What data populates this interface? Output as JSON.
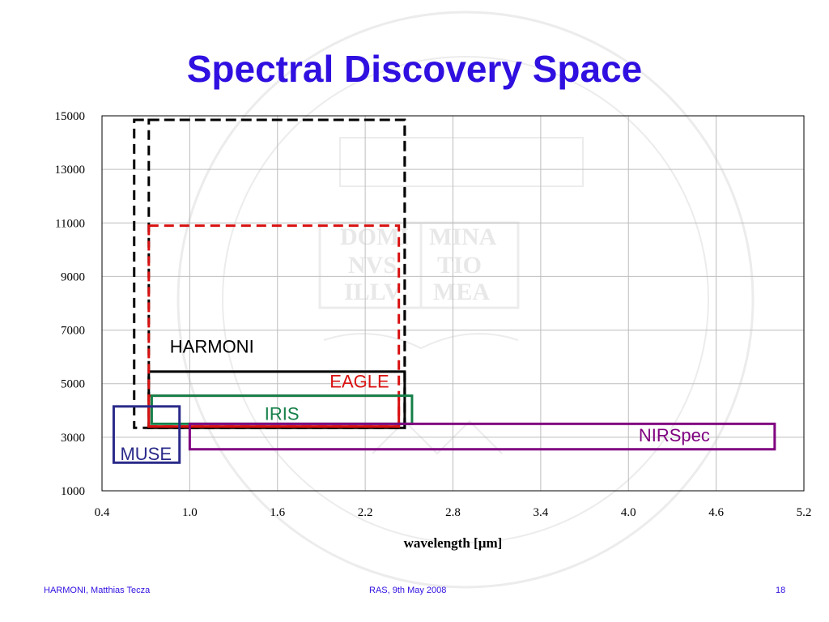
{
  "slide": {
    "title": "Spectral Discovery Space",
    "footer_left": "HARMONI, Matthias Tecza",
    "footer_center": "RAS, 9th May 2008",
    "page_number": "18"
  },
  "watermark": {
    "description_icon": "university-of-oxford-seal-icon",
    "motto_lines": [
      "DOMI",
      "NVS",
      "ILLV",
      "MINA",
      "TIO",
      "MEA"
    ]
  },
  "chart_data": {
    "type": "box-regions",
    "title": "Spectral Discovery Space",
    "xlabel": "wavelength [µm]",
    "ylabel": "",
    "xlim": [
      0.4,
      5.2
    ],
    "ylim": [
      1000,
      15000
    ],
    "xticks": [
      "0.4",
      "1.0",
      "1.6",
      "2.2",
      "2.8",
      "3.4",
      "4.0",
      "4.6",
      "5.2"
    ],
    "yticks": [
      "1000",
      "3000",
      "5000",
      "7000",
      "9000",
      "11000",
      "13000",
      "15000"
    ],
    "grid": true,
    "regions": [
      {
        "name": "HARMONI",
        "x": [
          0.62,
          2.47
        ],
        "y": [
          3350,
          14850
        ],
        "color": "#000000",
        "style": "dashed",
        "label": ""
      },
      {
        "name": "HARMONI",
        "x": [
          0.72,
          2.47
        ],
        "y": [
          3350,
          14850
        ],
        "color": "#000000",
        "style": "dashed",
        "label": ""
      },
      {
        "name": "HARMONI",
        "x": [
          0.72,
          2.47
        ],
        "y": [
          3350,
          5450
        ],
        "color": "#000000",
        "style": "solid",
        "label": "HARMONI"
      },
      {
        "name": "EAGLE",
        "x": [
          0.72,
          2.43
        ],
        "y": [
          3400,
          10900
        ],
        "color": "#d81010",
        "style": "dashed",
        "label": ""
      },
      {
        "name": "EAGLE",
        "x": [
          0.72,
          2.43
        ],
        "y": [
          3400,
          4550
        ],
        "color": "#d81010",
        "style": "solid",
        "label": "EAGLE"
      },
      {
        "name": "IRIS",
        "x": [
          0.74,
          2.52
        ],
        "y": [
          3500,
          4550
        ],
        "color": "#16804a",
        "style": "solid",
        "label": "IRIS"
      },
      {
        "name": "NIRSpec",
        "x": [
          1.0,
          5.0
        ],
        "y": [
          2550,
          3500
        ],
        "color": "#800080",
        "style": "solid",
        "label": "NIRSpec"
      },
      {
        "name": "MUSE",
        "x": [
          0.48,
          0.93
        ],
        "y": [
          2050,
          4150
        ],
        "color": "#2a2a8a",
        "style": "solid",
        "label": "MUSE"
      }
    ],
    "label_positions": [
      "HARMONI:inside-above-left",
      "EAGLE:top-right",
      "IRIS:top-center",
      "NIRSpec:bottom-right",
      "MUSE:bottom-left"
    ]
  }
}
